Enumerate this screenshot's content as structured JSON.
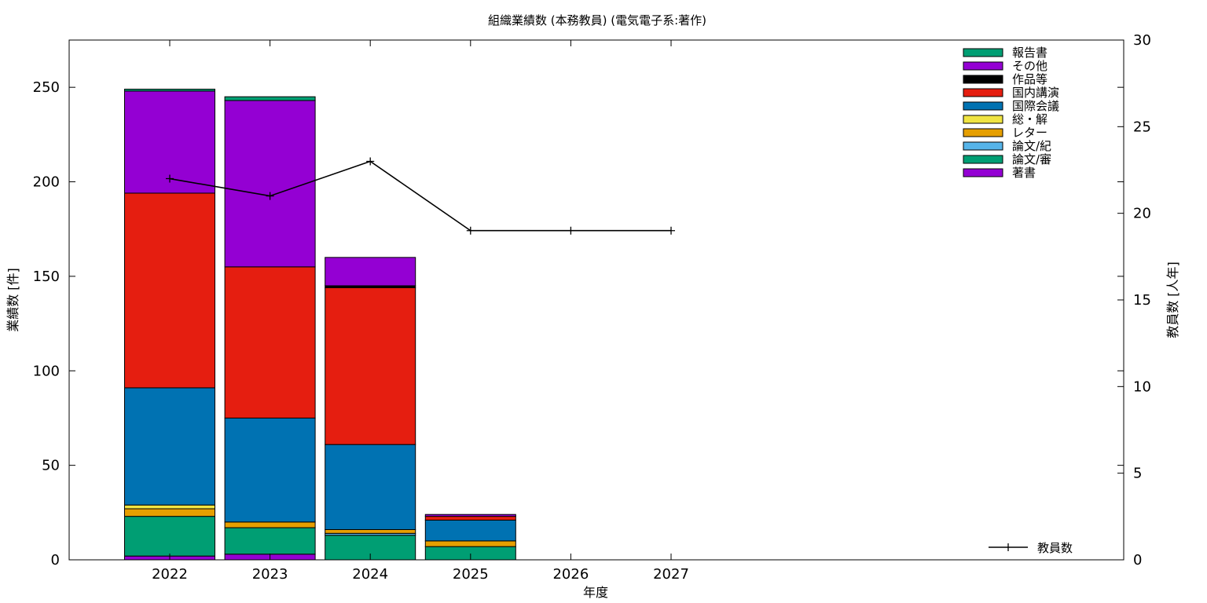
{
  "chart_data": {
    "type": "bar",
    "title": "組織業績数 (本務教員) (電気電子系:著作)",
    "xlabel": "年度",
    "ylabel": "業績数 [件]",
    "y2label": "教員数 [人年]",
    "categories": [
      "2022",
      "2023",
      "2024",
      "2025",
      "2026",
      "2027"
    ],
    "ylim": [
      0,
      275
    ],
    "yticks": [
      0,
      50,
      100,
      150,
      200,
      250
    ],
    "y2lim": [
      0,
      30
    ],
    "y2ticks": [
      0,
      5,
      10,
      15,
      20,
      25,
      30
    ],
    "grid": false,
    "legend_position": "top-right",
    "stack_order": [
      "著書",
      "論文/審",
      "論文/紀",
      "レター",
      "総・解",
      "国際会議",
      "国内講演",
      "作品等",
      "その他",
      "報告書"
    ],
    "series": [
      {
        "name": "報告書",
        "color": "#009e73",
        "values": [
          1,
          2,
          0,
          0,
          0,
          0
        ]
      },
      {
        "name": "その他",
        "color": "#9400d3",
        "values": [
          54,
          88,
          15,
          1,
          0,
          0
        ]
      },
      {
        "name": "作品等",
        "color": "#000000",
        "values": [
          0,
          0,
          1,
          0,
          0,
          0
        ]
      },
      {
        "name": "国内講演",
        "color": "#e51e10",
        "values": [
          103,
          80,
          83,
          2,
          0,
          0
        ]
      },
      {
        "name": "国際会議",
        "color": "#0072b2",
        "values": [
          62,
          55,
          45,
          11,
          0,
          0
        ]
      },
      {
        "name": "総・解",
        "color": "#f0e442",
        "values": [
          2,
          0,
          0,
          0,
          0,
          0
        ]
      },
      {
        "name": "レター",
        "color": "#e69f00",
        "values": [
          4,
          3,
          2,
          3,
          0,
          0
        ]
      },
      {
        "name": "論文/紀",
        "color": "#56b4e9",
        "values": [
          0,
          0,
          1,
          0,
          0,
          0
        ]
      },
      {
        "name": "論文/審",
        "color": "#009e73",
        "values": [
          21,
          14,
          13,
          7,
          0,
          0
        ]
      },
      {
        "name": "著書",
        "color": "#9400d3",
        "values": [
          2,
          3,
          0,
          0,
          0,
          0
        ]
      }
    ],
    "line_series": {
      "name": "教員数",
      "axis": "y2",
      "color": "#000000",
      "values": [
        22,
        21,
        23,
        19,
        19,
        19
      ]
    }
  }
}
